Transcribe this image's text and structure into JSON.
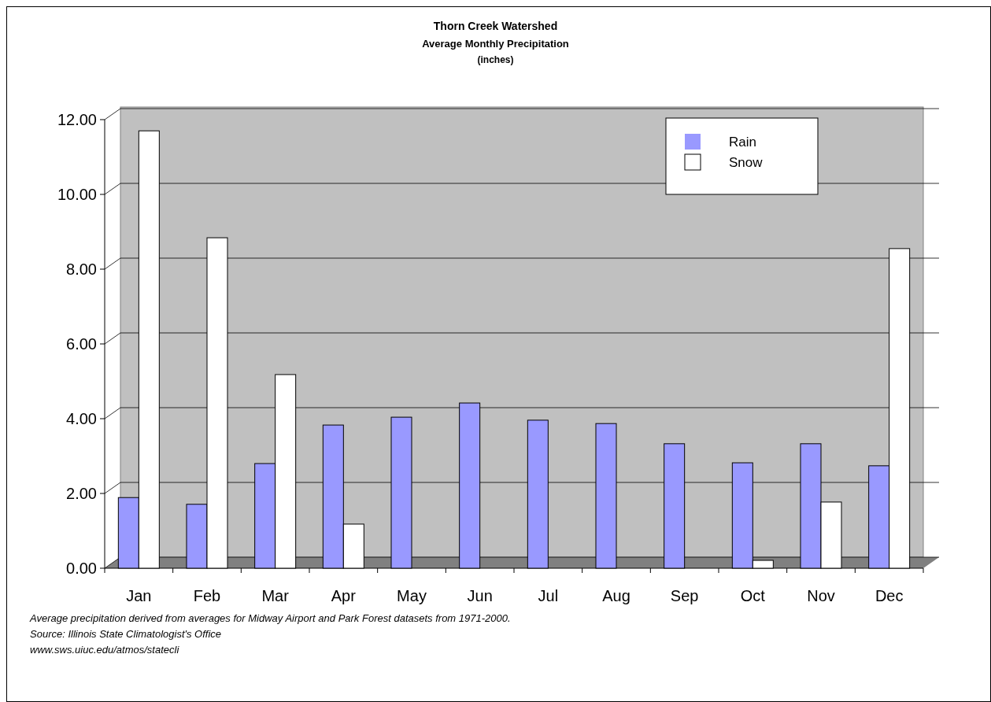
{
  "chart_data": {
    "type": "bar",
    "title": "Thorn Creek Watershed",
    "subtitle": "Average Monthly Precipitation\n(inches)",
    "categories": [
      "Jan",
      "Feb",
      "Mar",
      "Apr",
      "May",
      "Jun",
      "Jul",
      "Aug",
      "Sep",
      "Oct",
      "Nov",
      "Dec"
    ],
    "series": [
      {
        "name": "Rain",
        "color": "#9999ff",
        "values": [
          1.89,
          1.71,
          2.8,
          3.83,
          4.04,
          4.42,
          3.96,
          3.87,
          3.33,
          2.82,
          3.33,
          2.74
        ]
      },
      {
        "name": "Snow",
        "color": "#ffffff",
        "values": [
          11.7,
          8.84,
          5.18,
          1.18,
          0,
          0,
          0,
          0,
          0,
          0.21,
          1.77,
          8.55
        ]
      }
    ],
    "ylim": [
      0,
      12
    ],
    "yticks": [
      {
        "value": 0,
        "label": "0.00"
      },
      {
        "value": 2,
        "label": "2.00"
      },
      {
        "value": 4,
        "label": "4.00"
      },
      {
        "value": 6,
        "label": "6.00"
      },
      {
        "value": 8,
        "label": "8.00"
      },
      {
        "value": 10,
        "label": "10.00"
      },
      {
        "value": 12,
        "label": "12.00"
      }
    ],
    "grid": "y",
    "legend": "top right",
    "annotations": [
      "Average precipitation derived from averages for Midway Airport and Park Forest datasets from 1971-2000.",
      "Source: Illinois State Climatologist's Office",
      "www.sws.uiuc.edu/atmos/statecli"
    ]
  }
}
